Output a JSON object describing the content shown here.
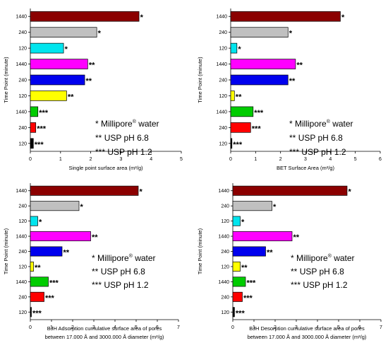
{
  "colors": [
    "#8B0000",
    "#C0C0C0",
    "#00E5EE",
    "#FF00FF",
    "#0000EE",
    "#FFFF00",
    "#00CC00",
    "#FF0000",
    "#000000"
  ],
  "legend": {
    "lines": [
      {
        "stars": "*",
        "text": "Millipore",
        "sup": "®",
        "after": " water"
      },
      {
        "stars": "**",
        "text": "USP pH 6.8",
        "sup": "",
        "after": ""
      },
      {
        "stars": "***",
        "text": "USP pH 1.2",
        "sup": "",
        "after": ""
      }
    ]
  },
  "chart_data": [
    {
      "type": "bar",
      "orientation": "horizontal",
      "categories": [
        "1440",
        "240",
        "120",
        "1440",
        "240",
        "120",
        "1440",
        "240",
        "120"
      ],
      "markers": [
        "*",
        "*",
        "*",
        "**",
        "**",
        "**",
        "***",
        "***",
        "***"
      ],
      "values": [
        3.6,
        2.2,
        1.1,
        1.9,
        1.8,
        1.2,
        0.25,
        0.18,
        0.1
      ],
      "xlim": [
        0,
        5
      ],
      "xticks": [
        "0",
        "1",
        "2",
        "3",
        "4",
        "5"
      ],
      "xlabel": [
        "Single point surface area (m²/g)"
      ],
      "ylabel": "Time Point (minute)"
    },
    {
      "type": "bar",
      "orientation": "horizontal",
      "categories": [
        "1440",
        "240",
        "120",
        "1440",
        "240",
        "120",
        "1440",
        "240",
        "120"
      ],
      "markers": [
        "*",
        "*",
        "*",
        "**",
        "**",
        "**",
        "***",
        "***",
        "***"
      ],
      "values": [
        4.4,
        2.3,
        0.25,
        2.6,
        2.3,
        0.15,
        0.9,
        0.8,
        0.05
      ],
      "xlim": [
        0,
        6
      ],
      "xticks": [
        "0",
        "1",
        "2",
        "3",
        "4",
        "5",
        "6"
      ],
      "xlabel": [
        "BET Surface Area (m²/g)"
      ],
      "ylabel": "Time Point (minute)"
    },
    {
      "type": "bar",
      "orientation": "horizontal",
      "categories": [
        "1440",
        "240",
        "120",
        "1440",
        "240",
        "120",
        "1440",
        "240",
        "120"
      ],
      "markers": [
        "*",
        "*",
        "*",
        "**",
        "**",
        "**",
        "***",
        "***",
        "***"
      ],
      "values": [
        5.1,
        2.3,
        0.35,
        2.85,
        1.5,
        0.15,
        0.85,
        0.65,
        0.02
      ],
      "xlim": [
        0,
        7
      ],
      "xticks": [
        "0",
        "1",
        "2",
        "3",
        "4",
        "5",
        "6",
        "7"
      ],
      "xlabel": [
        "BJH Adsorption cumulative surface area of pores",
        "between 17.000 Å and 3000.000 Å diameter (m²/g)"
      ],
      "ylabel": "Time Point (minute)"
    },
    {
      "type": "bar",
      "orientation": "horizontal",
      "categories": [
        "1440",
        "240",
        "120",
        "1440",
        "240",
        "120",
        "1440",
        "240",
        "120"
      ],
      "markers": [
        "*",
        "*",
        "*",
        "**",
        "**",
        "**",
        "***",
        "***",
        "***"
      ],
      "values": [
        5.4,
        1.85,
        0.35,
        2.8,
        1.55,
        0.35,
        0.6,
        0.45,
        0.08
      ],
      "xlim": [
        0,
        7
      ],
      "xticks": [
        "0",
        "1",
        "2",
        "3",
        "4",
        "5",
        "6",
        "7"
      ],
      "xlabel": [
        "BJH Desorption cumulative surface area of pores",
        "between 17.000 Å and 3000.000 Å diameter (m²/g)"
      ],
      "ylabel": "Time Point (minute)"
    }
  ]
}
